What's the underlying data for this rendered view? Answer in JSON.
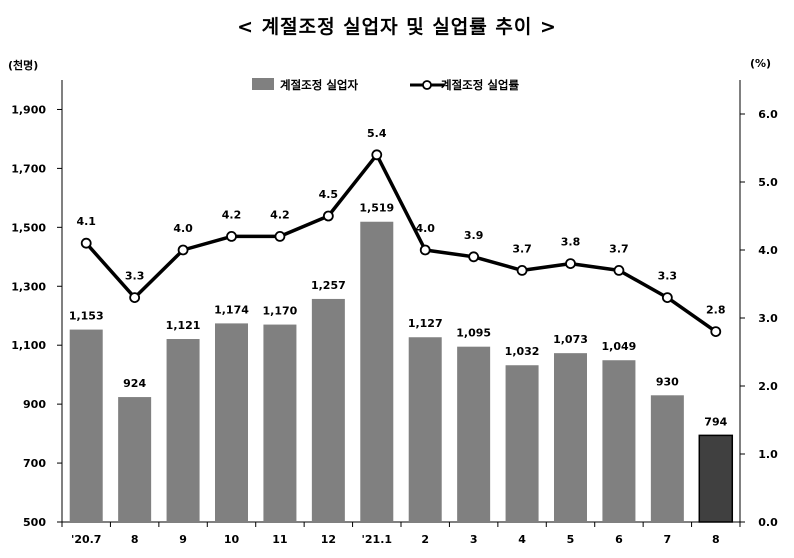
{
  "chart_data": {
    "type": "bar",
    "title": "< 계절조정 실업자 및 실업률 추이 >",
    "y_left_unit": "(천명)",
    "y_right_unit": "(%)",
    "categories": [
      "'20.7",
      "8",
      "9",
      "10",
      "11",
      "12",
      "'21.1",
      "2",
      "3",
      "4",
      "5",
      "6",
      "7",
      "8"
    ],
    "series": [
      {
        "name": "계절조정 실업자",
        "type": "bar",
        "axis": "left",
        "values": [
          1153,
          924,
          1121,
          1174,
          1170,
          1257,
          1519,
          1127,
          1095,
          1032,
          1073,
          1049,
          930,
          794
        ],
        "labels": [
          "1,153",
          "924",
          "1,121",
          "1,174",
          "1,170",
          "1,257",
          "1,519",
          "1,127",
          "1,095",
          "1,032",
          "1,073",
          "1,049",
          "930",
          "794"
        ]
      },
      {
        "name": "계절조정 실업률",
        "type": "line",
        "axis": "right",
        "values": [
          4.1,
          3.3,
          4.0,
          4.2,
          4.2,
          4.5,
          5.4,
          4.0,
          3.9,
          3.7,
          3.8,
          3.7,
          3.3,
          2.8
        ],
        "labels": [
          "4.1",
          "3.3",
          "4.0",
          "4.2",
          "4.2",
          "4.5",
          "5.4",
          "4.0",
          "3.9",
          "3.7",
          "3.8",
          "3.7",
          "3.3",
          "2.8"
        ]
      }
    ],
    "y_left": {
      "min": 500,
      "max": 2000,
      "ticks": [
        500,
        700,
        900,
        1100,
        1300,
        1500,
        1700,
        1900
      ],
      "tick_labels": [
        "500",
        "700",
        "900",
        "1,100",
        "1,300",
        "1,500",
        "1,700",
        "1,900"
      ]
    },
    "y_right": {
      "min": 0,
      "max": 6.5,
      "ticks": [
        0,
        1,
        2,
        3,
        4,
        5,
        6
      ],
      "tick_labels": [
        "0.0",
        "1.0",
        "2.0",
        "3.0",
        "4.0",
        "5.0",
        "6.0"
      ]
    },
    "grid": false,
    "legend_position": "top-center",
    "colors": {
      "bar": "#808080",
      "bar_highlight": "#404040",
      "line": "#000000",
      "marker_fill": "#ffffff"
    }
  }
}
